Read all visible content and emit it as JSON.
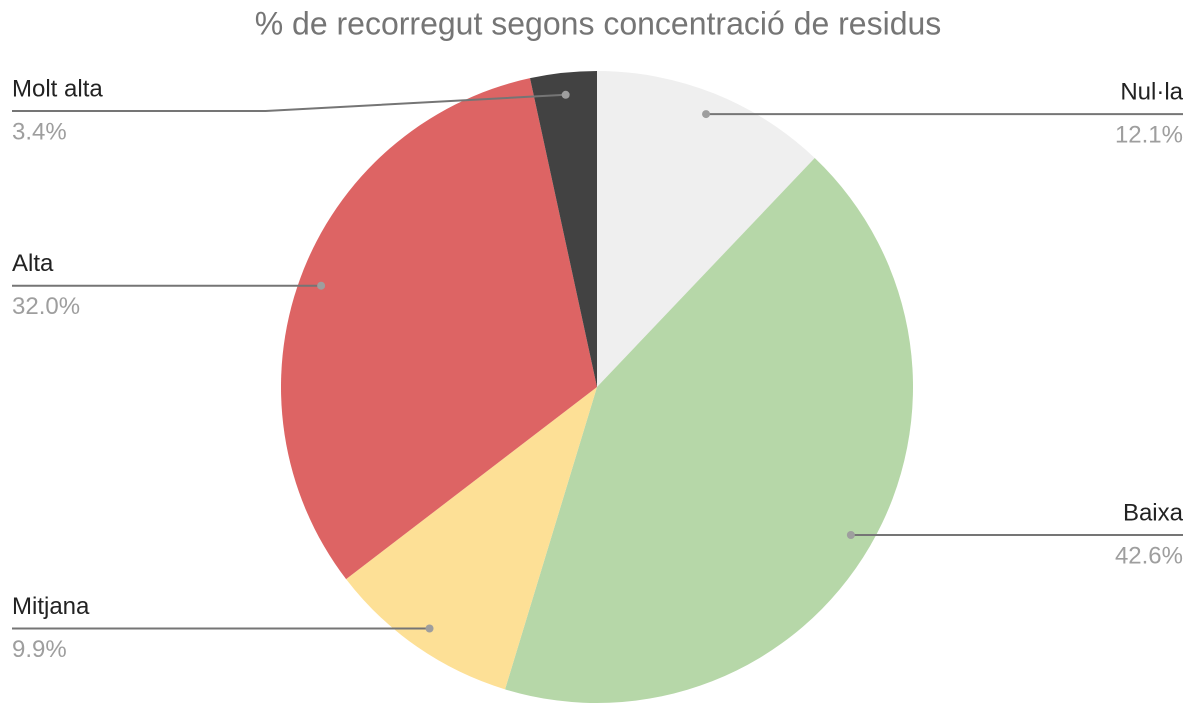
{
  "chart_data": {
    "type": "pie",
    "title": "% de recorregut segons concentració de residus",
    "categories": [
      "Nul·la",
      "Baixa",
      "Mitjana",
      "Alta",
      "Molt alta"
    ],
    "values": [
      12.1,
      42.6,
      9.9,
      32.0,
      3.4
    ],
    "value_labels": [
      "12.1%",
      "42.6%",
      "9.9%",
      "32.0%",
      "3.4%"
    ],
    "colors": [
      "#efefef",
      "#b6d7a8",
      "#fde096",
      "#dd6464",
      "#424242"
    ]
  }
}
